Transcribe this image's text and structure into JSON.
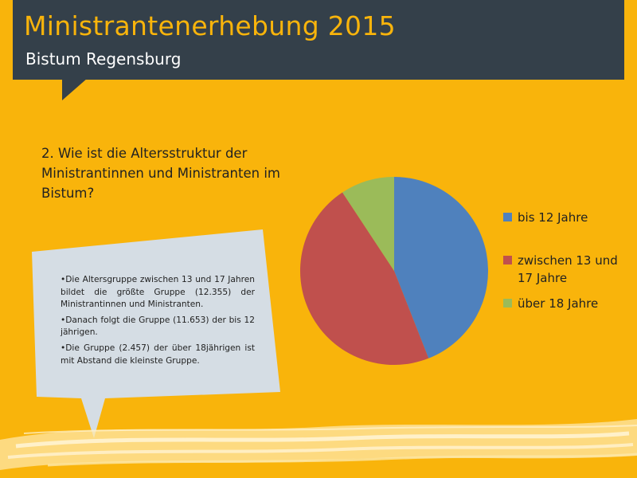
{
  "header": {
    "title": "Ministrantenerhebung 2015",
    "subtitle": "Bistum Regensburg"
  },
  "question": "2. Wie ist die Altersstruktur der Ministrantinnen und Ministranten im Bistum?",
  "callout": {
    "items": [
      "•Die Altersgruppe zwischen 13 und 17 Jahren bildet die größte Gruppe (12.355) der Ministrantinnen und Ministranten.",
      "•Danach folgt die Gruppe (11.653) der bis 12 jährigen.",
      "•Die Gruppe (2.457) der über 18jährigen ist mit Abstand die kleinste Gruppe."
    ]
  },
  "colors": {
    "background": "#f9b40b",
    "header": "#34404a",
    "callout": "#d5dde4"
  },
  "chart_data": {
    "type": "pie",
    "legend_position": "right",
    "categories": [
      "bis 12 Jahre",
      "zwischen 13 und 17 Jahre",
      "über 18 Jahre"
    ],
    "values": [
      11653,
      12355,
      2457
    ],
    "colors": [
      "#4f81bd",
      "#c0504d",
      "#9bbb59"
    ]
  }
}
